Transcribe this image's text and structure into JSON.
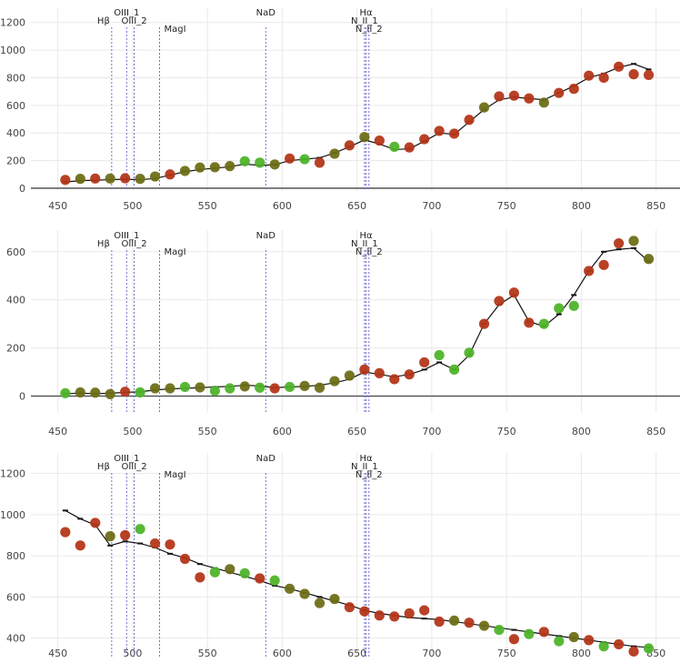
{
  "chart_data": [
    {
      "type": "scatter",
      "x_ticks": [
        450,
        500,
        550,
        600,
        650,
        700,
        750,
        800,
        850
      ],
      "y_ticks": [
        0,
        200,
        400,
        600,
        800,
        1000,
        1200
      ],
      "xlim": [
        432,
        866
      ],
      "ylim": [
        -20,
        1310
      ],
      "grid": true,
      "colors": {
        "red": "#b4371a",
        "olive": "#6e6f18",
        "green": "#4fb42b",
        "line": "#111111",
        "markerline": "#6e6edc"
      },
      "spectral_lines": [
        {
          "name": "Hβ",
          "x": 486,
          "label_rank": 1
        },
        {
          "name": "OIII_1",
          "x": 496,
          "label_rank": 0
        },
        {
          "name": "OIII_2",
          "x": 501,
          "label_rank": 1
        },
        {
          "name": "MagI",
          "x": 518,
          "label_rank": 2
        },
        {
          "name": "NaD",
          "x": 589,
          "label_rank": 0
        },
        {
          "name": "Hα",
          "x": 656,
          "label_rank": 0
        },
        {
          "name": "N_II_1",
          "x": 655,
          "label_rank": 1
        },
        {
          "name": "N_II_2",
          "x": 658,
          "label_rank": 2
        }
      ],
      "line_series": {
        "x": [
          455,
          465,
          475,
          485,
          495,
          505,
          515,
          525,
          535,
          545,
          555,
          565,
          575,
          585,
          595,
          605,
          615,
          625,
          635,
          645,
          655,
          665,
          675,
          685,
          695,
          705,
          715,
          725,
          735,
          745,
          755,
          765,
          775,
          785,
          795,
          805,
          815,
          825,
          835,
          845
        ],
        "y": [
          45,
          55,
          58,
          62,
          65,
          62,
          70,
          95,
          120,
          135,
          145,
          155,
          175,
          165,
          170,
          200,
          210,
          220,
          255,
          300,
          350,
          320,
          280,
          285,
          340,
          400,
          390,
          480,
          570,
          640,
          660,
          650,
          640,
          690,
          740,
          800,
          830,
          875,
          900,
          860
        ]
      },
      "points": [
        {
          "x": 455,
          "y": 60,
          "c": "red"
        },
        {
          "x": 465,
          "y": 68,
          "c": "olive"
        },
        {
          "x": 475,
          "y": 70,
          "c": "red"
        },
        {
          "x": 485,
          "y": 70,
          "c": "olive"
        },
        {
          "x": 495,
          "y": 72,
          "c": "red"
        },
        {
          "x": 505,
          "y": 68,
          "c": "olive"
        },
        {
          "x": 515,
          "y": 85,
          "c": "olive"
        },
        {
          "x": 525,
          "y": 100,
          "c": "red"
        },
        {
          "x": 535,
          "y": 125,
          "c": "olive"
        },
        {
          "x": 545,
          "y": 150,
          "c": "olive"
        },
        {
          "x": 555,
          "y": 152,
          "c": "olive"
        },
        {
          "x": 565,
          "y": 160,
          "c": "olive"
        },
        {
          "x": 575,
          "y": 195,
          "c": "green"
        },
        {
          "x": 585,
          "y": 185,
          "c": "green"
        },
        {
          "x": 595,
          "y": 172,
          "c": "olive"
        },
        {
          "x": 605,
          "y": 215,
          "c": "red"
        },
        {
          "x": 615,
          "y": 210,
          "c": "green"
        },
        {
          "x": 625,
          "y": 185,
          "c": "red"
        },
        {
          "x": 635,
          "y": 250,
          "c": "olive"
        },
        {
          "x": 645,
          "y": 310,
          "c": "red"
        },
        {
          "x": 655,
          "y": 370,
          "c": "olive"
        },
        {
          "x": 665,
          "y": 345,
          "c": "red"
        },
        {
          "x": 675,
          "y": 300,
          "c": "green"
        },
        {
          "x": 685,
          "y": 295,
          "c": "red"
        },
        {
          "x": 695,
          "y": 355,
          "c": "red"
        },
        {
          "x": 705,
          "y": 415,
          "c": "red"
        },
        {
          "x": 715,
          "y": 395,
          "c": "red"
        },
        {
          "x": 725,
          "y": 495,
          "c": "red"
        },
        {
          "x": 735,
          "y": 585,
          "c": "olive"
        },
        {
          "x": 745,
          "y": 665,
          "c": "red"
        },
        {
          "x": 755,
          "y": 670,
          "c": "red"
        },
        {
          "x": 765,
          "y": 650,
          "c": "red"
        },
        {
          "x": 775,
          "y": 620,
          "c": "olive"
        },
        {
          "x": 785,
          "y": 690,
          "c": "red"
        },
        {
          "x": 795,
          "y": 720,
          "c": "red"
        },
        {
          "x": 805,
          "y": 815,
          "c": "red"
        },
        {
          "x": 815,
          "y": 800,
          "c": "red"
        },
        {
          "x": 825,
          "y": 880,
          "c": "red"
        },
        {
          "x": 835,
          "y": 825,
          "c": "red"
        },
        {
          "x": 845,
          "y": 820,
          "c": "red"
        }
      ]
    },
    {
      "type": "scatter",
      "x_ticks": [
        450,
        500,
        550,
        600,
        650,
        700,
        750,
        800,
        850
      ],
      "y_ticks": [
        0,
        200,
        400,
        600
      ],
      "xlim": [
        432,
        866
      ],
      "ylim": [
        -70,
        690
      ],
      "grid": true,
      "colors": {
        "red": "#b4371a",
        "olive": "#6e6f18",
        "green": "#4fb42b",
        "line": "#111111",
        "markerline": "#6e6edc"
      },
      "spectral_lines": [
        {
          "name": "Hβ",
          "x": 486,
          "label_rank": 1
        },
        {
          "name": "OIII_1",
          "x": 496,
          "label_rank": 0
        },
        {
          "name": "OIII_2",
          "x": 501,
          "label_rank": 1
        },
        {
          "name": "MagI",
          "x": 518,
          "label_rank": 2
        },
        {
          "name": "NaD",
          "x": 589,
          "label_rank": 0
        },
        {
          "name": "Hα",
          "x": 656,
          "label_rank": 0
        },
        {
          "name": "N_II_1",
          "x": 655,
          "label_rank": 1
        },
        {
          "name": "N_II_2",
          "x": 658,
          "label_rank": 2
        }
      ],
      "line_series": {
        "x": [
          455,
          465,
          475,
          485,
          495,
          505,
          515,
          525,
          535,
          545,
          555,
          565,
          575,
          585,
          595,
          605,
          615,
          625,
          635,
          645,
          655,
          665,
          675,
          685,
          695,
          705,
          715,
          725,
          735,
          745,
          755,
          765,
          775,
          785,
          795,
          805,
          815,
          825,
          835,
          845
        ],
        "y": [
          10,
          12,
          10,
          12,
          15,
          18,
          25,
          30,
          32,
          35,
          38,
          40,
          45,
          42,
          35,
          38,
          40,
          45,
          55,
          70,
          100,
          90,
          80,
          90,
          110,
          140,
          110,
          170,
          300,
          380,
          420,
          310,
          290,
          340,
          420,
          520,
          600,
          610,
          615,
          560
        ]
      },
      "points": [
        {
          "x": 455,
          "y": 12,
          "c": "green"
        },
        {
          "x": 465,
          "y": 15,
          "c": "olive"
        },
        {
          "x": 475,
          "y": 14,
          "c": "olive"
        },
        {
          "x": 485,
          "y": 8,
          "c": "olive"
        },
        {
          "x": 495,
          "y": 18,
          "c": "red"
        },
        {
          "x": 505,
          "y": 15,
          "c": "green"
        },
        {
          "x": 515,
          "y": 32,
          "c": "olive"
        },
        {
          "x": 525,
          "y": 32,
          "c": "olive"
        },
        {
          "x": 535,
          "y": 38,
          "c": "green"
        },
        {
          "x": 545,
          "y": 36,
          "c": "olive"
        },
        {
          "x": 555,
          "y": 22,
          "c": "green"
        },
        {
          "x": 565,
          "y": 32,
          "c": "green"
        },
        {
          "x": 575,
          "y": 40,
          "c": "olive"
        },
        {
          "x": 585,
          "y": 35,
          "c": "green"
        },
        {
          "x": 595,
          "y": 32,
          "c": "red"
        },
        {
          "x": 605,
          "y": 38,
          "c": "green"
        },
        {
          "x": 615,
          "y": 42,
          "c": "olive"
        },
        {
          "x": 625,
          "y": 35,
          "c": "olive"
        },
        {
          "x": 635,
          "y": 62,
          "c": "olive"
        },
        {
          "x": 645,
          "y": 85,
          "c": "olive"
        },
        {
          "x": 655,
          "y": 110,
          "c": "red"
        },
        {
          "x": 665,
          "y": 95,
          "c": "red"
        },
        {
          "x": 675,
          "y": 70,
          "c": "red"
        },
        {
          "x": 685,
          "y": 90,
          "c": "red"
        },
        {
          "x": 695,
          "y": 140,
          "c": "red"
        },
        {
          "x": 705,
          "y": 170,
          "c": "green"
        },
        {
          "x": 715,
          "y": 110,
          "c": "green"
        },
        {
          "x": 725,
          "y": 180,
          "c": "green"
        },
        {
          "x": 735,
          "y": 300,
          "c": "red"
        },
        {
          "x": 745,
          "y": 395,
          "c": "red"
        },
        {
          "x": 755,
          "y": 430,
          "c": "red"
        },
        {
          "x": 765,
          "y": 305,
          "c": "red"
        },
        {
          "x": 775,
          "y": 300,
          "c": "green"
        },
        {
          "x": 785,
          "y": 365,
          "c": "green"
        },
        {
          "x": 795,
          "y": 375,
          "c": "green"
        },
        {
          "x": 805,
          "y": 520,
          "c": "red"
        },
        {
          "x": 815,
          "y": 545,
          "c": "red"
        },
        {
          "x": 825,
          "y": 635,
          "c": "red"
        },
        {
          "x": 835,
          "y": 645,
          "c": "olive"
        },
        {
          "x": 845,
          "y": 570,
          "c": "olive"
        }
      ]
    },
    {
      "type": "scatter",
      "x_ticks": [
        450,
        500,
        550,
        600,
        650,
        700,
        750,
        800,
        850
      ],
      "y_ticks": [
        400,
        600,
        800,
        1000,
        1200
      ],
      "xlim": [
        432,
        866
      ],
      "ylim": [
        310,
        1300
      ],
      "grid": true,
      "colors": {
        "red": "#b4371a",
        "olive": "#6e6f18",
        "green": "#4fb42b",
        "line": "#111111",
        "markerline": "#6e6edc"
      },
      "spectral_lines": [
        {
          "name": "Hβ",
          "x": 486,
          "label_rank": 1
        },
        {
          "name": "OIII_1",
          "x": 496,
          "label_rank": 0
        },
        {
          "name": "OIII_2",
          "x": 501,
          "label_rank": 1
        },
        {
          "name": "MagI",
          "x": 518,
          "label_rank": 2
        },
        {
          "name": "NaD",
          "x": 589,
          "label_rank": 0
        },
        {
          "name": "Hα",
          "x": 656,
          "label_rank": 0
        },
        {
          "name": "N_II_1",
          "x": 655,
          "label_rank": 1
        },
        {
          "name": "N_II_2",
          "x": 658,
          "label_rank": 2
        }
      ],
      "line_series": {
        "x": [
          455,
          465,
          475,
          485,
          495,
          505,
          515,
          525,
          535,
          545,
          555,
          565,
          575,
          585,
          595,
          605,
          615,
          625,
          635,
          645,
          655,
          665,
          675,
          685,
          695,
          705,
          715,
          725,
          735,
          745,
          755,
          765,
          775,
          785,
          795,
          805,
          815,
          825,
          835,
          845
        ],
        "y": [
          1020,
          980,
          950,
          850,
          870,
          860,
          840,
          810,
          790,
          760,
          740,
          720,
          700,
          680,
          655,
          640,
          620,
          600,
          580,
          560,
          535,
          520,
          510,
          500,
          495,
          490,
          480,
          470,
          460,
          450,
          440,
          430,
          420,
          410,
          400,
          390,
          380,
          370,
          360,
          355
        ]
      },
      "points": [
        {
          "x": 455,
          "y": 915,
          "c": "red"
        },
        {
          "x": 465,
          "y": 850,
          "c": "red"
        },
        {
          "x": 475,
          "y": 960,
          "c": "red"
        },
        {
          "x": 485,
          "y": 895,
          "c": "olive"
        },
        {
          "x": 495,
          "y": 900,
          "c": "red"
        },
        {
          "x": 505,
          "y": 930,
          "c": "green"
        },
        {
          "x": 515,
          "y": 860,
          "c": "red"
        },
        {
          "x": 525,
          "y": 855,
          "c": "red"
        },
        {
          "x": 535,
          "y": 785,
          "c": "red"
        },
        {
          "x": 545,
          "y": 695,
          "c": "red"
        },
        {
          "x": 555,
          "y": 720,
          "c": "green"
        },
        {
          "x": 565,
          "y": 735,
          "c": "olive"
        },
        {
          "x": 575,
          "y": 715,
          "c": "green"
        },
        {
          "x": 585,
          "y": 690,
          "c": "red"
        },
        {
          "x": 595,
          "y": 680,
          "c": "green"
        },
        {
          "x": 605,
          "y": 640,
          "c": "olive"
        },
        {
          "x": 615,
          "y": 615,
          "c": "olive"
        },
        {
          "x": 625,
          "y": 570,
          "c": "olive"
        },
        {
          "x": 635,
          "y": 590,
          "c": "olive"
        },
        {
          "x": 645,
          "y": 550,
          "c": "red"
        },
        {
          "x": 655,
          "y": 530,
          "c": "red"
        },
        {
          "x": 665,
          "y": 510,
          "c": "red"
        },
        {
          "x": 675,
          "y": 505,
          "c": "red"
        },
        {
          "x": 685,
          "y": 520,
          "c": "red"
        },
        {
          "x": 695,
          "y": 535,
          "c": "red"
        },
        {
          "x": 705,
          "y": 480,
          "c": "red"
        },
        {
          "x": 715,
          "y": 485,
          "c": "olive"
        },
        {
          "x": 725,
          "y": 475,
          "c": "red"
        },
        {
          "x": 735,
          "y": 460,
          "c": "olive"
        },
        {
          "x": 745,
          "y": 440,
          "c": "green"
        },
        {
          "x": 755,
          "y": 395,
          "c": "red"
        },
        {
          "x": 765,
          "y": 420,
          "c": "green"
        },
        {
          "x": 775,
          "y": 430,
          "c": "red"
        },
        {
          "x": 785,
          "y": 385,
          "c": "green"
        },
        {
          "x": 795,
          "y": 405,
          "c": "olive"
        },
        {
          "x": 805,
          "y": 390,
          "c": "red"
        },
        {
          "x": 815,
          "y": 360,
          "c": "green"
        },
        {
          "x": 825,
          "y": 370,
          "c": "red"
        },
        {
          "x": 835,
          "y": 335,
          "c": "red"
        },
        {
          "x": 845,
          "y": 350,
          "c": "green"
        }
      ]
    }
  ]
}
